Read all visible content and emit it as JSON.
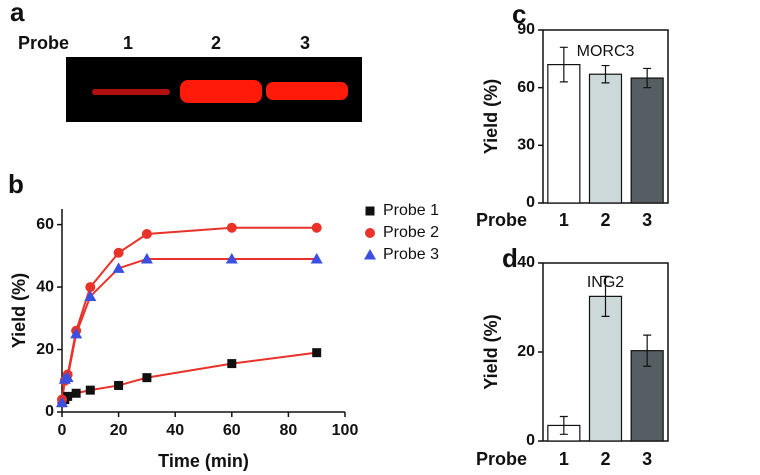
{
  "gel": {
    "label": "a",
    "row_label": "Probe",
    "lanes": [
      "1",
      "2",
      "3"
    ]
  },
  "chart_data": [
    {
      "type": "scatter",
      "label": "b",
      "xlabel": "Time (min)",
      "ylabel": "Yield (%)",
      "xlim": [
        0,
        100
      ],
      "xticks": [
        0,
        20,
        40,
        60,
        80,
        100
      ],
      "ylim": [
        0,
        65
      ],
      "yticks": [
        0,
        20,
        40,
        60
      ],
      "fit_color": "#e8322a",
      "series": [
        {
          "name": "Probe 1",
          "color": "#111111",
          "marker": "square",
          "x": [
            0,
            1,
            2,
            5,
            10,
            20,
            30,
            60,
            90
          ],
          "values": [
            3,
            4,
            5,
            6,
            7,
            8.5,
            11,
            15.5,
            19
          ]
        },
        {
          "name": "Probe 2",
          "color": "#e8322a",
          "marker": "circle",
          "x": [
            0,
            1,
            2,
            5,
            10,
            20,
            30,
            60,
            90
          ],
          "values": [
            4,
            10,
            12,
            26,
            40,
            51,
            57,
            59,
            59
          ]
        },
        {
          "name": "Probe 3",
          "color": "#3b4fe0",
          "marker": "triangle",
          "x": [
            0,
            1,
            2,
            5,
            10,
            20,
            30,
            60,
            90
          ],
          "values": [
            3,
            10.5,
            11,
            25,
            37,
            46,
            49,
            49,
            49
          ]
        }
      ]
    },
    {
      "type": "bar",
      "label": "c",
      "title": "MORC3",
      "ylabel": "Yield (%)",
      "xlabel": "Probe",
      "categories": [
        "1",
        "2",
        "3"
      ],
      "values": [
        72,
        67,
        65
      ],
      "errors": [
        9,
        4.5,
        5
      ],
      "colors": [
        "#ffffff",
        "#cdd8d8",
        "#555e63"
      ],
      "ylim": [
        0,
        90
      ],
      "yticks": [
        0,
        30,
        60,
        90
      ]
    },
    {
      "type": "bar",
      "label": "d",
      "title": "ING2",
      "ylabel": "Yield (%)",
      "xlabel": "Probe",
      "categories": [
        "1",
        "2",
        "3"
      ],
      "values": [
        3.5,
        32.5,
        20.3
      ],
      "errors": [
        2,
        4.5,
        3.5
      ],
      "colors": [
        "#ffffff",
        "#cdd8d8",
        "#555e63"
      ],
      "ylim": [
        0,
        40
      ],
      "yticks": [
        0,
        20,
        40
      ]
    }
  ]
}
